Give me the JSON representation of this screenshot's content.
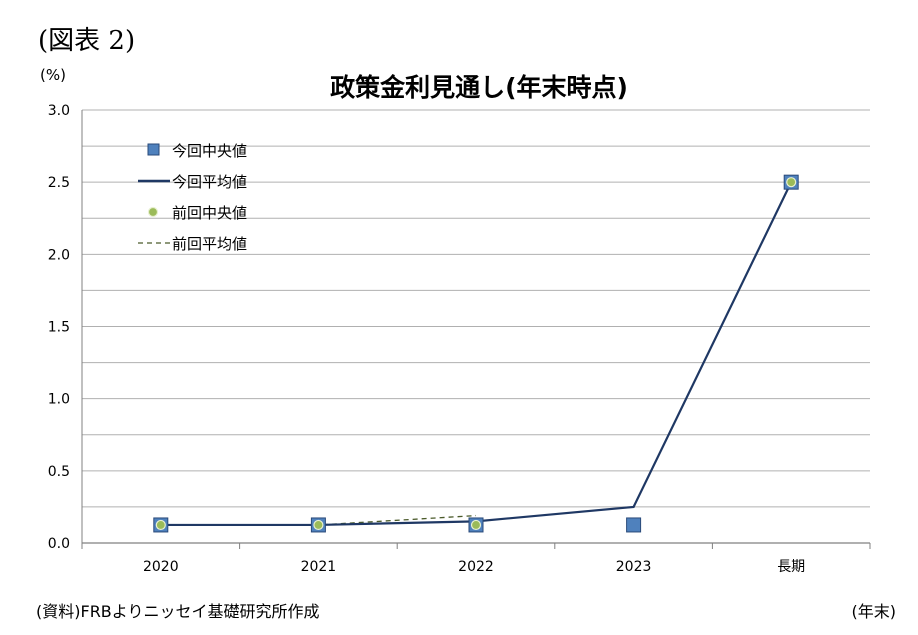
{
  "figure_label": "(図表 2)",
  "unit_label": "(%)",
  "x_unit_label": "(年末)",
  "source": "(資料)FRBよりニッセイ基礎研究所作成",
  "colors": {
    "current_median": "#4f81bd",
    "current_median_edge": "#2a4a7a",
    "current_mean": "#1f3864",
    "previous_median": "#9bbb59",
    "previous_mean": "#4a5a2a",
    "grid": "#b0b0b0",
    "axis": "#808080"
  },
  "chart_data": {
    "type": "line",
    "title": "政策金利見通し(年末時点)",
    "ylabel": "(%)",
    "xlabel": "(年末)",
    "categories": [
      "2020",
      "2021",
      "2022",
      "2023",
      "長期"
    ],
    "ylim": [
      0,
      3.0
    ],
    "yticks": [
      "0.0",
      "0.5",
      "1.0",
      "1.5",
      "2.0",
      "2.5",
      "3.0"
    ],
    "legend_position": "top-left",
    "grid": true,
    "series": [
      {
        "name": "今回中央値",
        "style": "marker-square",
        "values": [
          0.125,
          0.125,
          0.125,
          0.125,
          2.5
        ]
      },
      {
        "name": "今回平均値",
        "style": "solid-line",
        "values": [
          0.125,
          0.125,
          0.15,
          0.25,
          2.5
        ]
      },
      {
        "name": "前回中央値",
        "style": "marker-circle",
        "values": [
          0.125,
          0.125,
          0.125,
          null,
          2.5
        ]
      },
      {
        "name": "前回平均値",
        "style": "dashed-line",
        "values": [
          0.125,
          0.125,
          0.19,
          null,
          null
        ]
      }
    ]
  }
}
